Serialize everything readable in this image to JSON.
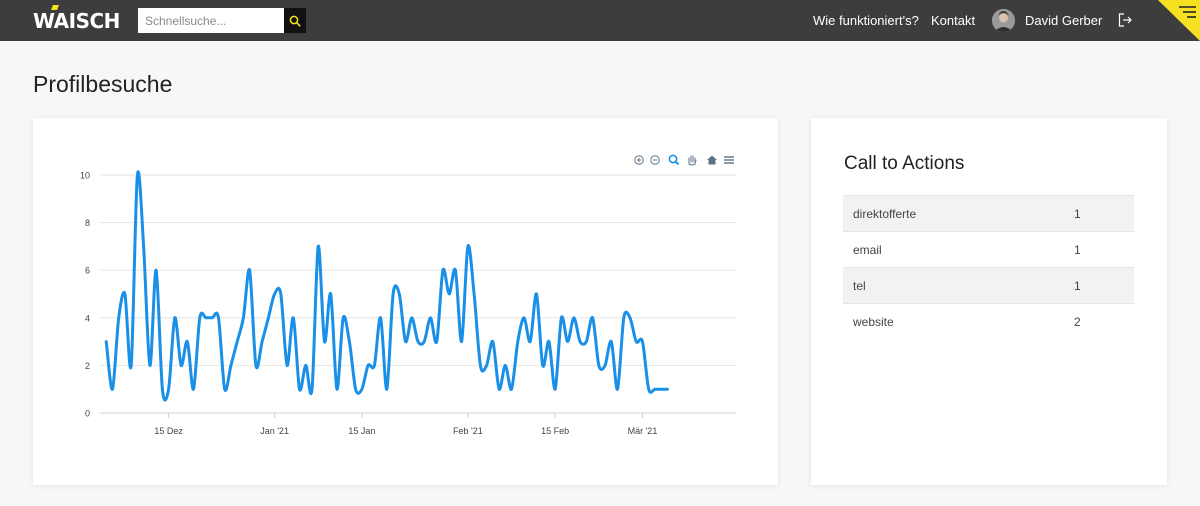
{
  "header": {
    "logo_text": "WAISCH",
    "search_placeholder": "Schnellsuche...",
    "nav": [
      "Wie funktioniert's?",
      "Kontakt"
    ],
    "user_name": "David Gerber",
    "bg_color": "#3d3d3d",
    "accent_color": "#f5e021"
  },
  "page": {
    "title": "Profilbesuche"
  },
  "chart_toolbar": [
    "zoom-in-icon",
    "zoom-out-icon",
    "magnify-icon",
    "pan-hand-icon",
    "home-icon",
    "menu-icon"
  ],
  "chart_data": {
    "type": "line",
    "line_color": "#1a8fe8",
    "ylim": [
      0,
      10
    ],
    "y_ticks": [
      0,
      2,
      4,
      6,
      8,
      10
    ],
    "x_range": [
      "2020-12-04",
      "2021-03-16"
    ],
    "x_ticks": [
      {
        "date": "2020-12-15",
        "label": "15 Dez"
      },
      {
        "date": "2021-01-01",
        "label": "Jan '21"
      },
      {
        "date": "2021-01-15",
        "label": "15 Jan"
      },
      {
        "date": "2021-02-01",
        "label": "Feb '21"
      },
      {
        "date": "2021-02-15",
        "label": "15 Feb"
      },
      {
        "date": "2021-03-01",
        "label": "Mär '21"
      }
    ],
    "grid": true,
    "series": [
      {
        "values": [
          3,
          1,
          4,
          5,
          2,
          10,
          7,
          2,
          6,
          1,
          1,
          4,
          2,
          3,
          1,
          4,
          4,
          4,
          4,
          1,
          2,
          3,
          4,
          6,
          2,
          3,
          4,
          5,
          5,
          2,
          4,
          1,
          2,
          1,
          7,
          3,
          5,
          1,
          4,
          3,
          1,
          1,
          2,
          2,
          4,
          1,
          5,
          5,
          3,
          4,
          3,
          3,
          4,
          3,
          6,
          5,
          6,
          3,
          7,
          5,
          2,
          2,
          3,
          1,
          2,
          1,
          3,
          4,
          3,
          5,
          2,
          3,
          1,
          4,
          3,
          4,
          3,
          3,
          4,
          2,
          2,
          3,
          1,
          4,
          4,
          3,
          3,
          1,
          1,
          1,
          1
        ],
        "start_date": "2020-12-05"
      }
    ]
  },
  "cta": {
    "title": "Call to Actions",
    "rows": [
      {
        "label": "direktofferte",
        "value": "1"
      },
      {
        "label": "email",
        "value": "1"
      },
      {
        "label": "tel",
        "value": "1"
      },
      {
        "label": "website",
        "value": "2"
      }
    ]
  }
}
